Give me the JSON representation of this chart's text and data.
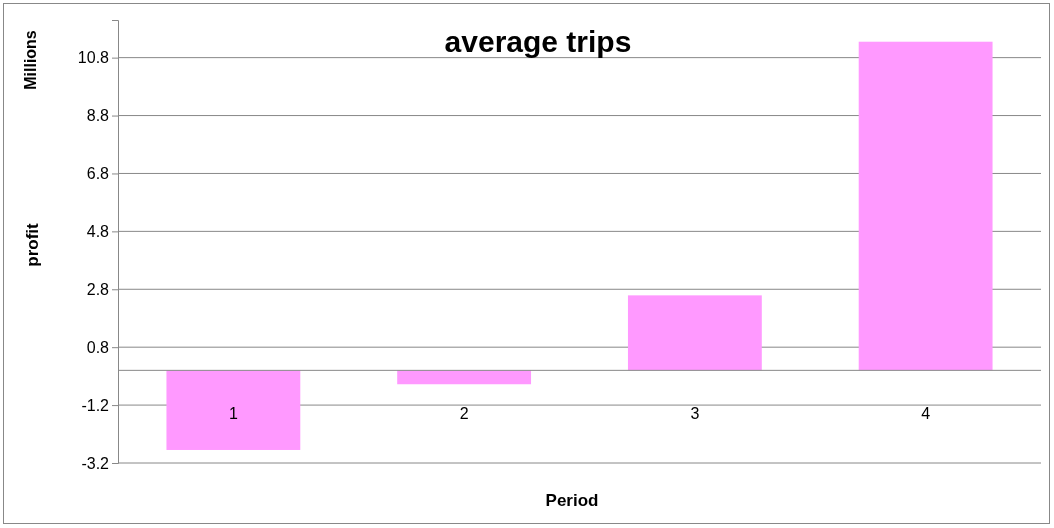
{
  "chart_data": {
    "type": "bar",
    "title": "average trips",
    "xlabel": "Period",
    "ylabel": "profit",
    "annotations": [
      "Millions"
    ],
    "categories": [
      "1",
      "2",
      "3",
      "4"
    ],
    "values": [
      -2.75,
      -0.48,
      2.59,
      11.35
    ],
    "color": "#ff99ff",
    "ylim": [
      -3.2,
      12.1
    ],
    "yticks": [
      -3.2,
      -1.2,
      0.8,
      2.8,
      4.8,
      6.8,
      8.8,
      10.8
    ],
    "grid": "y"
  }
}
